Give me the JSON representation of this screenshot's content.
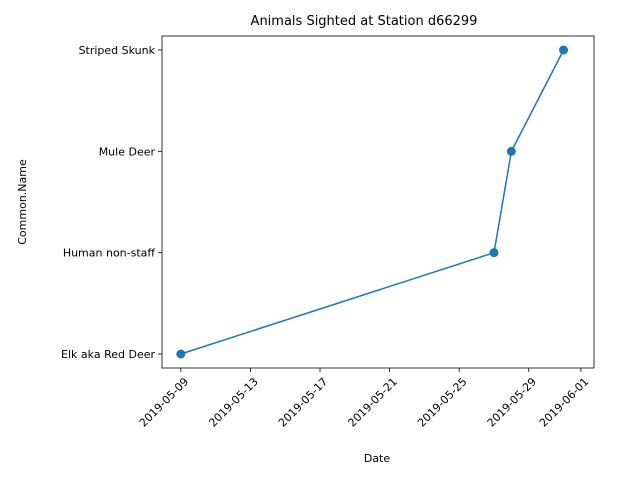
{
  "chart_data": {
    "type": "line",
    "title": "Animals Sighted at Station d66299",
    "xlabel": "Date",
    "ylabel": "Common.Name",
    "x_ticks": [
      "2019-05-09",
      "2019-05-13",
      "2019-05-17",
      "2019-05-21",
      "2019-05-25",
      "2019-05-29",
      "2019-06-01"
    ],
    "y_categories": [
      "Elk aka Red Deer",
      "Human non-staff",
      "Mule Deer",
      "Striped Skunk"
    ],
    "xlim": [
      "2019-05-07T22:00",
      "2019-06-01T18:00"
    ],
    "points": [
      {
        "x": "2019-05-09",
        "y": "Elk aka Red Deer"
      },
      {
        "x": "2019-05-27",
        "y": "Human non-staff"
      },
      {
        "x": "2019-05-28",
        "y": "Mule Deer"
      },
      {
        "x": "2019-05-31",
        "y": "Striped Skunk"
      }
    ],
    "color": "#1f77b4",
    "marker": "circle",
    "grid": false,
    "x_tick_rotation": 45
  }
}
